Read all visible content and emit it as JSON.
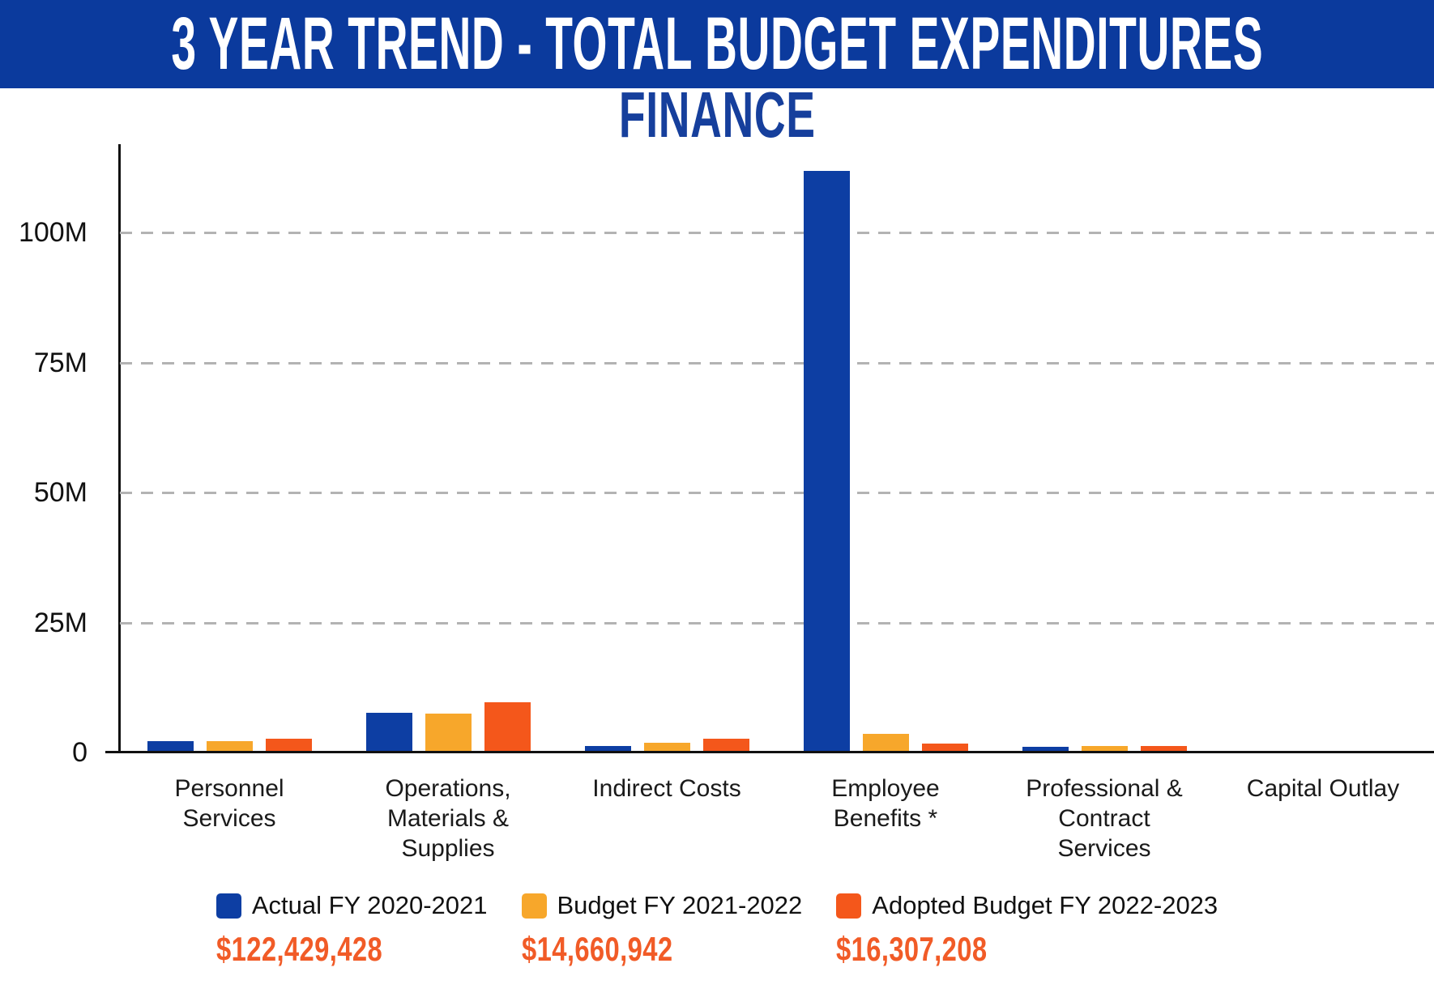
{
  "banner": {
    "title": "3 YEAR TREND - TOTAL BUDGET EXPENDITURES",
    "bg_color": "#0B3A9D",
    "text_color": "#FFFFFF"
  },
  "subtitle": "FINANCE",
  "colors": {
    "banner_bg": "#0B3A9D",
    "subtitle_text": "#163F9C",
    "actual_blue": "#0D3EA3",
    "budget_yellow": "#F7A72B",
    "adopted_orange": "#F4571B",
    "totals_orange": "#F15B27",
    "gridline_gray": "#B3B3B3",
    "axis_black": "#111111"
  },
  "chart_data": {
    "type": "bar",
    "title": "3 YEAR TREND - TOTAL BUDGET EXPENDITURES",
    "subtitle": "FINANCE",
    "unit": "millions USD",
    "categories": [
      "Personnel\nServices",
      "Operations,\nMaterials &\nSupplies",
      "Indirect Costs",
      "Employee\nBenefits *",
      "Professional &\nContract\nServices",
      "Capital Outlay"
    ],
    "series": [
      {
        "name": "Actual FY 2020-2021",
        "color": "#0D3EA3",
        "total_label": "$122,429,428",
        "values_millions": [
          1.8,
          7.3,
          1.0,
          111.5,
          0.83,
          0
        ]
      },
      {
        "name": "Budget FY 2021-2022",
        "color": "#F7A72B",
        "total_label": "$14,660,942",
        "values_millions": [
          1.8,
          7.2,
          1.5,
          3.3,
          0.86,
          0
        ]
      },
      {
        "name": "Adopted Budget FY 2022-2023",
        "color": "#F4571B",
        "total_label": "$16,307,208",
        "values_millions": [
          2.3,
          9.4,
          2.3,
          1.4,
          0.91,
          0
        ]
      }
    ],
    "y_ticks": [
      {
        "label": "100M",
        "value": 100
      },
      {
        "label": "75M",
        "value": 75
      },
      {
        "label": "50M",
        "value": 50
      },
      {
        "label": "25M",
        "value": 25
      },
      {
        "label": "0",
        "value": 0
      }
    ],
    "ylim": [
      0,
      117
    ],
    "grid": "horizontal dashed",
    "legend_position": "bottom"
  }
}
